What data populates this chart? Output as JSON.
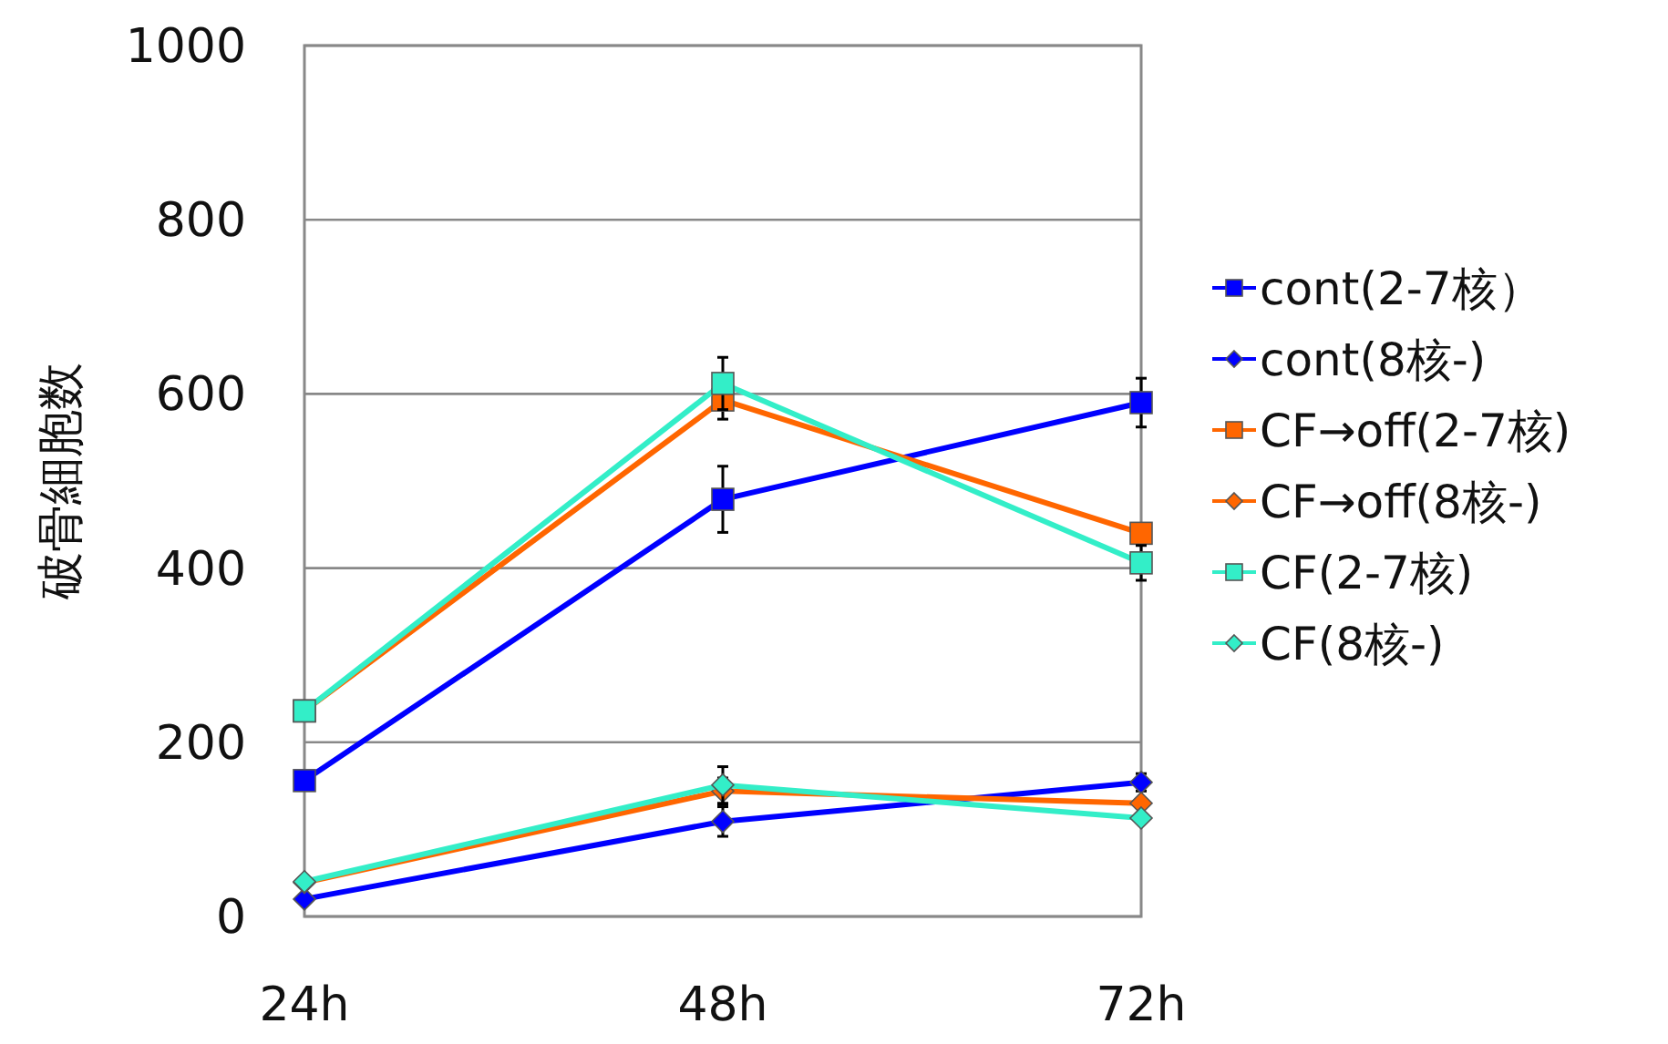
{
  "chart_data": {
    "type": "line",
    "ylabel": "破骨細胞数",
    "categories": [
      "24h",
      "48h",
      "72h"
    ],
    "ylim": [
      0,
      1000
    ],
    "yticks": [
      0,
      200,
      400,
      600,
      800,
      1000
    ],
    "grid": "y",
    "legend": "right",
    "series": [
      {
        "name": "cont(2-7核）",
        "color": "#0000ff",
        "marker": "square",
        "values": [
          156,
          479,
          590
        ],
        "errors": [
          null,
          38,
          28
        ]
      },
      {
        "name": "cont(8核-)",
        "color": "#0000ff",
        "marker": "diamond",
        "values": [
          20,
          109,
          154
        ],
        "errors": [
          null,
          17,
          10
        ]
      },
      {
        "name": "CF→off(2-7核)",
        "color": "#ff6600",
        "marker": "square",
        "values": [
          236,
          593,
          440
        ],
        "errors": [
          null,
          22,
          10
        ]
      },
      {
        "name": "CF→off(8核-)",
        "color": "#ff6600",
        "marker": "diamond",
        "values": [
          39,
          144,
          130
        ],
        "errors": [
          null,
          15,
          null
        ]
      },
      {
        "name": "CF(2-7核)",
        "color": "#33eec8",
        "marker": "square",
        "values": [
          236,
          612,
          406
        ],
        "errors": [
          null,
          30,
          20
        ]
      },
      {
        "name": "CF(8核-)",
        "color": "#33eec8",
        "marker": "diamond",
        "values": [
          40,
          151,
          113
        ],
        "errors": [
          null,
          21,
          null
        ]
      }
    ]
  }
}
